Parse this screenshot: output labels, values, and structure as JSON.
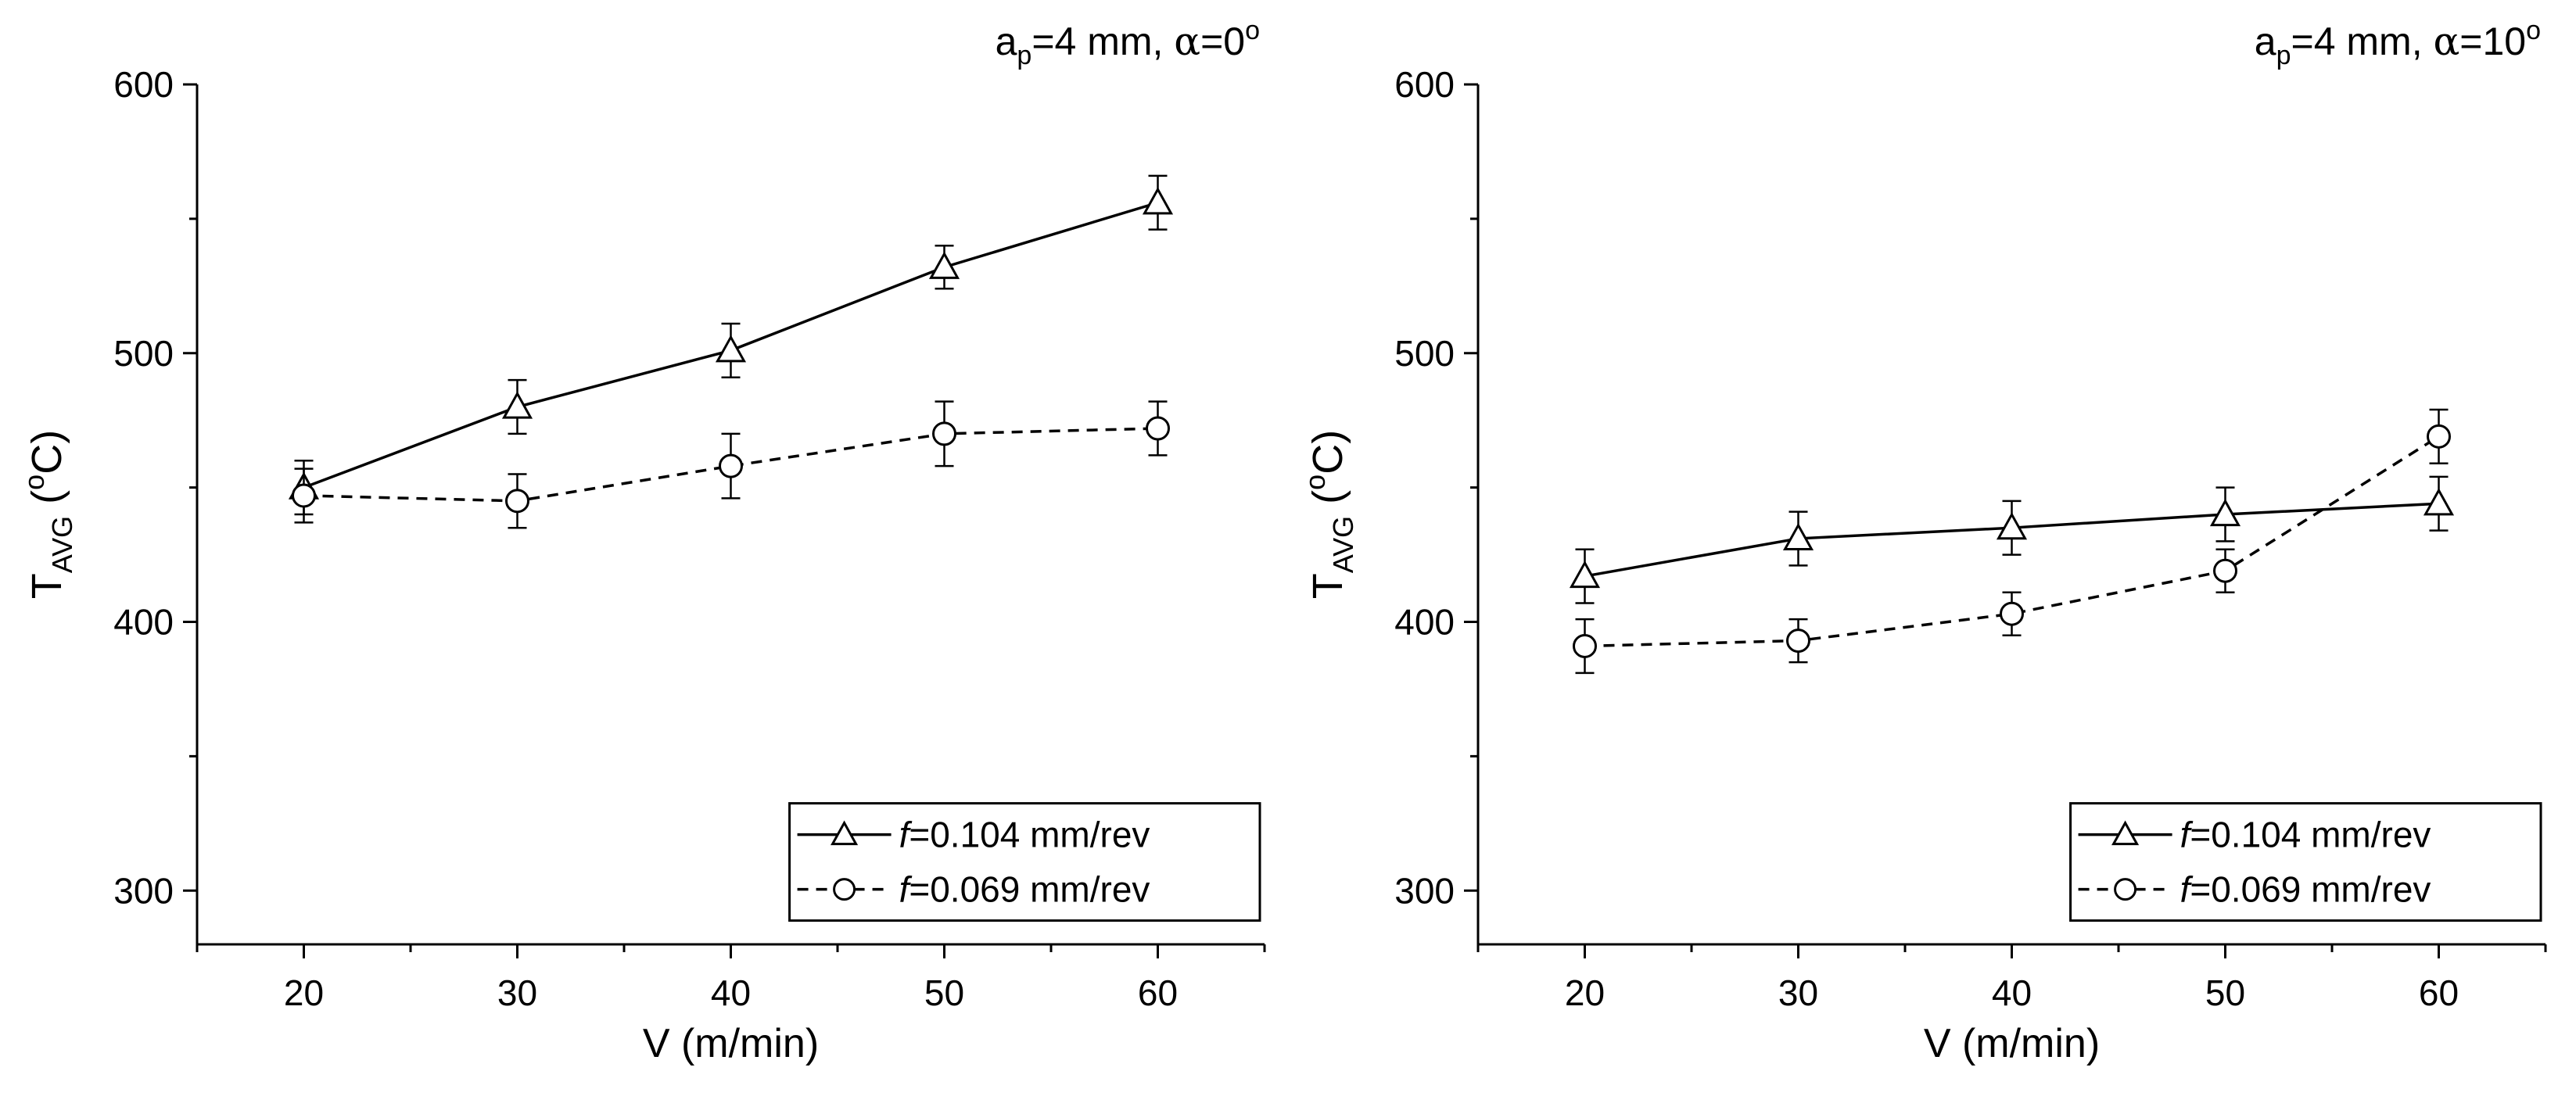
{
  "chart_data": [
    {
      "type": "line",
      "title": {
        "prefix": "a",
        "sub": "p",
        "rest": "=4 mm, ",
        "greek": "α",
        "value": "=0",
        "sup": "o"
      },
      "xlabel": "V (m/min)",
      "ylabel": {
        "main": "T",
        "sub": "AVG",
        "unit_open": " (",
        "unit_sup": "o",
        "unit_close": "C)"
      },
      "xlim": [
        15,
        65
      ],
      "ylim": [
        280,
        600
      ],
      "xticks": [
        20,
        30,
        40,
        50,
        60
      ],
      "yticks": [
        300,
        400,
        500,
        600
      ],
      "x": [
        20,
        30,
        40,
        50,
        60
      ],
      "legend_position": "bottom-right",
      "series": [
        {
          "name_italic": "f",
          "name_rest": "=0.104 mm/rev",
          "marker": "triangle",
          "line": "solid",
          "values": [
            450,
            480,
            501,
            532,
            556
          ],
          "errors": [
            10,
            10,
            10,
            8,
            10
          ]
        },
        {
          "name_italic": "f",
          "name_rest": "=0.069 mm/rev",
          "marker": "circle",
          "line": "dashed",
          "values": [
            447,
            445,
            458,
            470,
            472
          ],
          "errors": [
            10,
            10,
            12,
            12,
            10
          ]
        }
      ]
    },
    {
      "type": "line",
      "title": {
        "prefix": "a",
        "sub": "p",
        "rest": "=4 mm, ",
        "greek": "α",
        "value": "=10",
        "sup": "o"
      },
      "xlabel": "V (m/min)",
      "ylabel": {
        "main": "T",
        "sub": "AVG",
        "unit_open": " (",
        "unit_sup": "o",
        "unit_close": "C)"
      },
      "xlim": [
        15,
        65
      ],
      "ylim": [
        280,
        600
      ],
      "xticks": [
        20,
        30,
        40,
        50,
        60
      ],
      "yticks": [
        300,
        400,
        500,
        600
      ],
      "x": [
        20,
        30,
        40,
        50,
        60
      ],
      "legend_position": "bottom-right",
      "series": [
        {
          "name_italic": "f",
          "name_rest": "=0.104 mm/rev",
          "marker": "triangle",
          "line": "solid",
          "values": [
            417,
            431,
            435,
            440,
            444
          ],
          "errors": [
            10,
            10,
            10,
            10,
            10
          ]
        },
        {
          "name_italic": "f",
          "name_rest": "=0.069 mm/rev",
          "marker": "circle",
          "line": "dashed",
          "values": [
            391,
            393,
            403,
            419,
            469
          ],
          "errors": [
            10,
            8,
            8,
            8,
            10
          ]
        }
      ]
    }
  ]
}
